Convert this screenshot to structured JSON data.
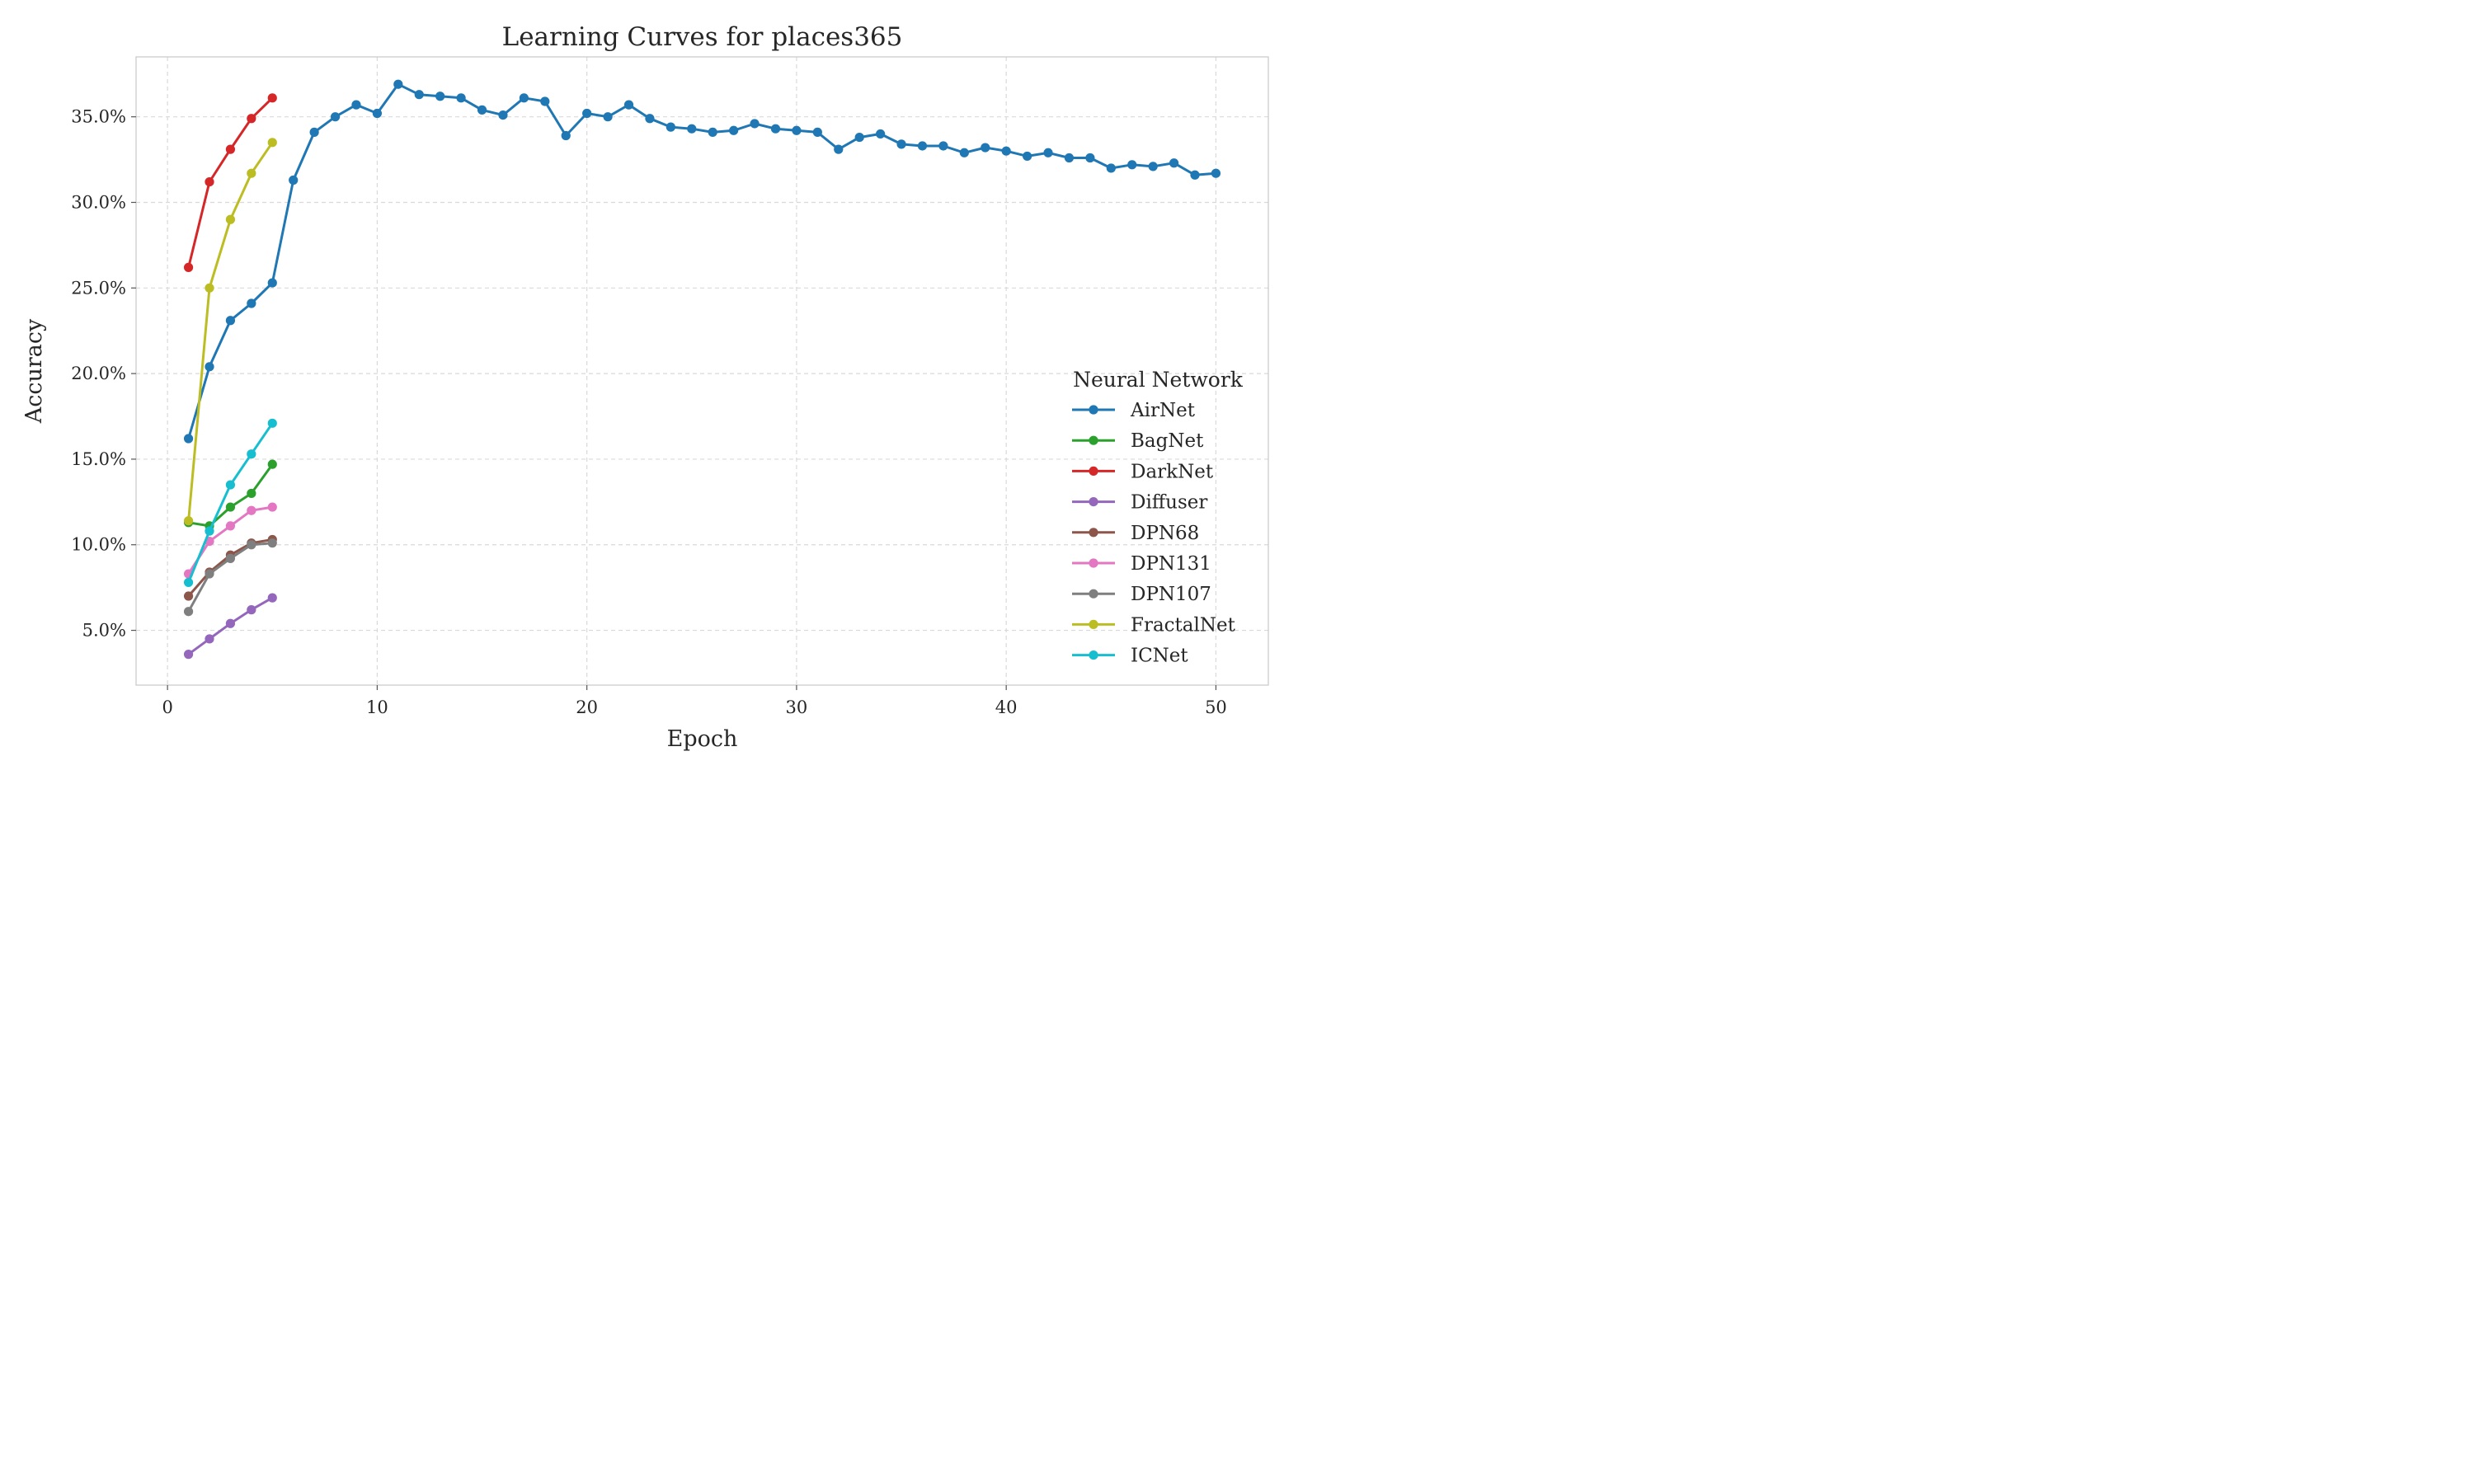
{
  "chart_data": {
    "type": "line",
    "title": "Learning Curves for places365",
    "xlabel": "Epoch",
    "ylabel": "Accuracy",
    "xlim": [
      -1.5,
      52.5
    ],
    "ylim": [
      1.8,
      38.5
    ],
    "y_unit": "%",
    "grid": true,
    "x_ticks": [
      {
        "value": 0,
        "label": "0"
      },
      {
        "value": 10,
        "label": "10"
      },
      {
        "value": 20,
        "label": "20"
      },
      {
        "value": 30,
        "label": "30"
      },
      {
        "value": 40,
        "label": "40"
      },
      {
        "value": 50,
        "label": "50"
      }
    ],
    "y_ticks": [
      {
        "value": 5,
        "label": "5.0%"
      },
      {
        "value": 10,
        "label": "10.0%"
      },
      {
        "value": 15,
        "label": "15.0%"
      },
      {
        "value": 20,
        "label": "20.0%"
      },
      {
        "value": 25,
        "label": "25.0%"
      },
      {
        "value": 30,
        "label": "30.0%"
      },
      {
        "value": 35,
        "label": "35.0%"
      }
    ],
    "legend": {
      "title": "Neural Network",
      "position": "center-right"
    },
    "series": [
      {
        "name": "AirNet",
        "color": "#1f77b4",
        "x": [
          1,
          2,
          3,
          4,
          5,
          6,
          7,
          8,
          9,
          10,
          11,
          12,
          13,
          14,
          15,
          16,
          17,
          18,
          19,
          20,
          21,
          22,
          23,
          24,
          25,
          26,
          27,
          28,
          29,
          30,
          31,
          32,
          33,
          34,
          35,
          36,
          37,
          38,
          39,
          40,
          41,
          42,
          43,
          44,
          45,
          46,
          47,
          48,
          49,
          50
        ],
        "values": [
          16.2,
          20.4,
          23.1,
          24.1,
          25.3,
          31.3,
          34.1,
          35.0,
          35.7,
          35.2,
          36.9,
          36.3,
          36.2,
          36.1,
          35.4,
          35.1,
          36.1,
          35.9,
          33.9,
          35.2,
          35.0,
          35.7,
          34.9,
          34.4,
          34.3,
          34.1,
          34.2,
          34.6,
          34.3,
          34.2,
          34.1,
          33.1,
          33.8,
          34.0,
          33.4,
          33.3,
          33.3,
          32.9,
          33.2,
          33.0,
          32.7,
          32.9,
          32.6,
          32.6,
          32.0,
          32.2,
          32.1,
          32.3,
          31.6,
          31.7
        ]
      },
      {
        "name": "BagNet",
        "color": "#2ca02c",
        "x": [
          1,
          2,
          3,
          4,
          5
        ],
        "values": [
          11.3,
          11.1,
          12.2,
          13.0,
          14.7
        ]
      },
      {
        "name": "DarkNet",
        "color": "#d62728",
        "x": [
          1,
          2,
          3,
          4,
          5
        ],
        "values": [
          26.2,
          31.2,
          33.1,
          34.9,
          36.1
        ]
      },
      {
        "name": "Diffuser",
        "color": "#9467bd",
        "x": [
          1,
          2,
          3,
          4,
          5
        ],
        "values": [
          3.6,
          4.5,
          5.4,
          6.2,
          6.9
        ]
      },
      {
        "name": "DPN68",
        "color": "#8c564b",
        "x": [
          1,
          2,
          3,
          4,
          5
        ],
        "values": [
          7.0,
          8.4,
          9.4,
          10.1,
          10.3
        ]
      },
      {
        "name": "DPN131",
        "color": "#e377c2",
        "x": [
          1,
          2,
          3,
          4,
          5
        ],
        "values": [
          8.3,
          10.2,
          11.1,
          12.0,
          12.2
        ]
      },
      {
        "name": "DPN107",
        "color": "#7f7f7f",
        "x": [
          1,
          2,
          3,
          4,
          5
        ],
        "values": [
          6.1,
          8.3,
          9.2,
          10.0,
          10.1
        ]
      },
      {
        "name": "FractalNet",
        "color": "#bcbd22",
        "x": [
          1,
          2,
          3,
          4,
          5
        ],
        "values": [
          11.4,
          25.0,
          29.0,
          31.7,
          33.5
        ]
      },
      {
        "name": "ICNet",
        "color": "#17becf",
        "x": [
          1,
          2,
          3,
          4,
          5
        ],
        "values": [
          7.8,
          10.8,
          13.5,
          15.3,
          17.1
        ]
      }
    ]
  }
}
